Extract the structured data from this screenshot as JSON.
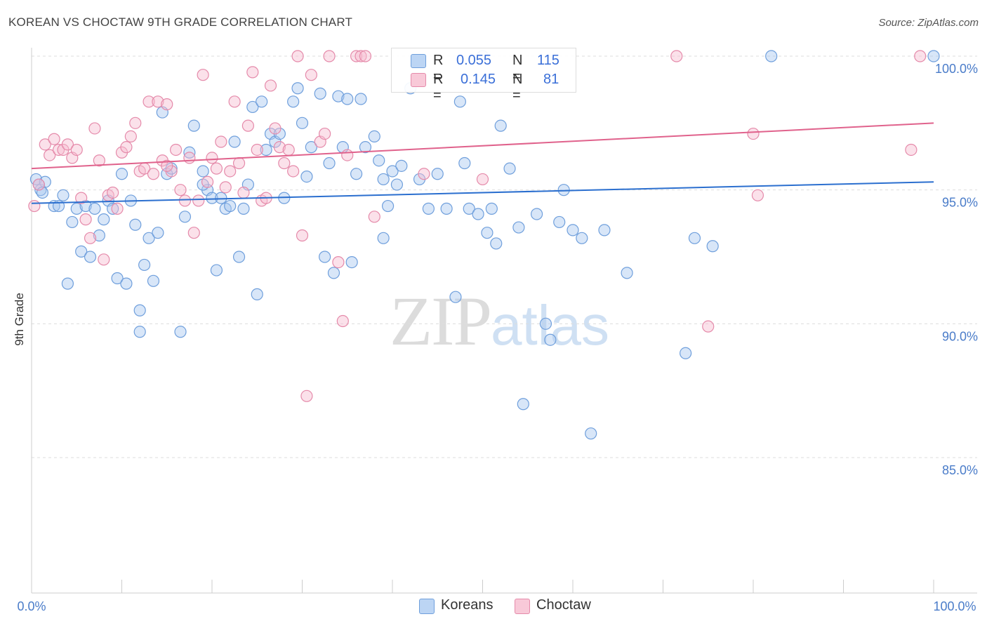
{
  "title": "KOREAN VS CHOCTAW 9TH GRADE CORRELATION CHART",
  "source": "Source: ZipAtlas.com",
  "watermark": {
    "zip": "ZIP",
    "atlas": "atlas"
  },
  "legend_top": [
    {
      "r_label": "R =",
      "r_value": "0.055",
      "n_label": "N =",
      "n_value": "115"
    },
    {
      "r_label": "R =",
      "r_value": "0.145",
      "n_label": "N =",
      "n_value": "81"
    }
  ],
  "legend_bottom": {
    "koreans": "Koreans",
    "choctaw": "Choctaw"
  },
  "chart_data": {
    "type": "scatter",
    "title": "KOREAN VS CHOCTAW 9TH GRADE CORRELATION CHART",
    "xlabel": "",
    "ylabel": "9th Grade",
    "x_tick_labels": [
      "0.0%",
      "100.0%"
    ],
    "y_tick_labels": [
      "100.0%",
      "95.0%",
      "90.0%",
      "85.0%"
    ],
    "y_ticks": [
      100,
      95,
      90,
      85
    ],
    "xlim": [
      0,
      100
    ],
    "ylim": [
      80,
      100.8
    ],
    "grid": true,
    "legend": "top-center",
    "colors": {
      "koreans_fill": "#a9c8f0",
      "koreans_stroke": "#6f9fdc",
      "koreans_line": "#2b6fcf",
      "choctaw_fill": "#f6bdd0",
      "choctaw_stroke": "#e58aaa",
      "choctaw_line": "#e0628c"
    },
    "series": [
      {
        "name": "Koreans",
        "trend": {
          "x": [
            0,
            100
          ],
          "y": [
            94.5,
            95.3
          ]
        },
        "points": [
          [
            0.5,
            95.4
          ],
          [
            1.0,
            95.0
          ],
          [
            1.5,
            95.3
          ],
          [
            2.5,
            94.4
          ],
          [
            3.5,
            94.8
          ],
          [
            4.0,
            91.5
          ],
          [
            4.5,
            93.8
          ],
          [
            5.0,
            94.3
          ],
          [
            5.5,
            92.7
          ],
          [
            6.0,
            94.4
          ],
          [
            6.5,
            92.5
          ],
          [
            7.0,
            94.3
          ],
          [
            7.5,
            93.3
          ],
          [
            8.0,
            93.9
          ],
          [
            8.5,
            94.6
          ],
          [
            9.0,
            94.3
          ],
          [
            9.5,
            91.7
          ],
          [
            10.0,
            95.6
          ],
          [
            10.5,
            91.5
          ],
          [
            11.0,
            94.6
          ],
          [
            11.5,
            93.7
          ],
          [
            12.0,
            90.5
          ],
          [
            12.0,
            89.7
          ],
          [
            12.5,
            92.2
          ],
          [
            13.0,
            93.2
          ],
          [
            13.5,
            91.6
          ],
          [
            14.0,
            93.4
          ],
          [
            14.5,
            97.9
          ],
          [
            15.0,
            95.6
          ],
          [
            15.5,
            95.8
          ],
          [
            16.5,
            89.7
          ],
          [
            17.0,
            94.0
          ],
          [
            17.5,
            96.4
          ],
          [
            18.0,
            97.4
          ],
          [
            19.0,
            95.7
          ],
          [
            19.5,
            95.0
          ],
          [
            20.0,
            94.7
          ],
          [
            20.5,
            92.0
          ],
          [
            21.0,
            94.7
          ],
          [
            21.5,
            94.3
          ],
          [
            22.0,
            94.4
          ],
          [
            22.5,
            96.8
          ],
          [
            23.0,
            92.5
          ],
          [
            23.5,
            94.3
          ],
          [
            24.0,
            95.2
          ],
          [
            24.5,
            98.1
          ],
          [
            25.0,
            91.1
          ],
          [
            25.5,
            98.3
          ],
          [
            26.0,
            96.5
          ],
          [
            26.5,
            97.1
          ],
          [
            27.0,
            96.8
          ],
          [
            28.0,
            94.7
          ],
          [
            29.0,
            98.3
          ],
          [
            29.5,
            98.8
          ],
          [
            30.0,
            97.5
          ],
          [
            30.5,
            95.5
          ],
          [
            32.0,
            98.6
          ],
          [
            32.5,
            92.5
          ],
          [
            33.0,
            96.0
          ],
          [
            33.5,
            91.9
          ],
          [
            34.0,
            98.5
          ],
          [
            34.5,
            96.6
          ],
          [
            35.0,
            98.4
          ],
          [
            35.5,
            92.3
          ],
          [
            36.0,
            95.6
          ],
          [
            36.5,
            98.4
          ],
          [
            37.0,
            96.6
          ],
          [
            38.0,
            97.0
          ],
          [
            38.5,
            96.1
          ],
          [
            39.0,
            95.4
          ],
          [
            39.5,
            94.4
          ],
          [
            40.0,
            95.7
          ],
          [
            40.5,
            95.2
          ],
          [
            41.0,
            95.9
          ],
          [
            42.0,
            98.8
          ],
          [
            43.0,
            95.4
          ],
          [
            44.0,
            94.3
          ],
          [
            46.0,
            94.3
          ],
          [
            47.0,
            91.0
          ],
          [
            47.5,
            98.3
          ],
          [
            48.0,
            96.0
          ],
          [
            48.5,
            94.3
          ],
          [
            49.5,
            94.1
          ],
          [
            50.0,
            100.0
          ],
          [
            50.5,
            93.4
          ],
          [
            51.0,
            94.3
          ],
          [
            51.5,
            93.0
          ],
          [
            52.0,
            97.4
          ],
          [
            53.0,
            95.8
          ],
          [
            54.0,
            93.6
          ],
          [
            54.5,
            87.0
          ],
          [
            56.0,
            94.1
          ],
          [
            57.0,
            90.0
          ],
          [
            57.5,
            89.4
          ],
          [
            58.5,
            93.8
          ],
          [
            59.0,
            95.0
          ],
          [
            60.0,
            93.5
          ],
          [
            61.0,
            93.2
          ],
          [
            62.0,
            85.9
          ],
          [
            63.5,
            93.5
          ],
          [
            66.0,
            91.9
          ],
          [
            72.5,
            88.9
          ],
          [
            73.5,
            93.2
          ],
          [
            75.5,
            92.9
          ],
          [
            82.0,
            100.0
          ],
          [
            100.0,
            100.0
          ],
          [
            0.8,
            95.2
          ],
          [
            1.2,
            94.9
          ],
          [
            3.0,
            94.4
          ],
          [
            19.0,
            95.2
          ],
          [
            27.5,
            97.1
          ],
          [
            31.0,
            96.6
          ],
          [
            39.0,
            93.2
          ],
          [
            45.0,
            95.6
          ]
        ]
      },
      {
        "name": "Choctaw",
        "trend": {
          "x": [
            0,
            100
          ],
          "y": [
            95.8,
            97.5
          ]
        },
        "points": [
          [
            0.3,
            94.4
          ],
          [
            0.8,
            95.2
          ],
          [
            1.5,
            96.7
          ],
          [
            2.0,
            96.3
          ],
          [
            2.5,
            96.9
          ],
          [
            3.0,
            96.5
          ],
          [
            3.5,
            96.5
          ],
          [
            4.0,
            96.7
          ],
          [
            4.5,
            96.2
          ],
          [
            5.0,
            96.5
          ],
          [
            5.5,
            94.7
          ],
          [
            6.0,
            93.9
          ],
          [
            6.5,
            93.2
          ],
          [
            7.0,
            97.3
          ],
          [
            7.5,
            96.1
          ],
          [
            8.0,
            92.4
          ],
          [
            8.5,
            94.8
          ],
          [
            9.0,
            94.9
          ],
          [
            9.5,
            94.3
          ],
          [
            10.0,
            96.4
          ],
          [
            10.5,
            96.6
          ],
          [
            11.0,
            97.0
          ],
          [
            11.5,
            97.5
          ],
          [
            12.0,
            95.7
          ],
          [
            12.5,
            95.8
          ],
          [
            13.0,
            98.3
          ],
          [
            13.5,
            95.6
          ],
          [
            14.0,
            98.3
          ],
          [
            14.5,
            96.1
          ],
          [
            15.0,
            98.2
          ],
          [
            15.5,
            95.7
          ],
          [
            16.0,
            96.5
          ],
          [
            16.5,
            95.0
          ],
          [
            17.0,
            94.6
          ],
          [
            17.5,
            96.2
          ],
          [
            18.0,
            93.4
          ],
          [
            18.5,
            94.6
          ],
          [
            19.0,
            99.3
          ],
          [
            19.5,
            95.3
          ],
          [
            20.0,
            96.2
          ],
          [
            20.5,
            95.8
          ],
          [
            21.0,
            96.8
          ],
          [
            21.5,
            95.1
          ],
          [
            22.0,
            95.7
          ],
          [
            22.5,
            98.3
          ],
          [
            23.0,
            96.0
          ],
          [
            23.5,
            94.9
          ],
          [
            24.0,
            97.4
          ],
          [
            24.5,
            99.4
          ],
          [
            25.0,
            96.5
          ],
          [
            25.5,
            94.6
          ],
          [
            26.0,
            94.7
          ],
          [
            26.5,
            98.9
          ],
          [
            27.0,
            97.3
          ],
          [
            27.5,
            96.6
          ],
          [
            28.0,
            96.0
          ],
          [
            28.5,
            96.5
          ],
          [
            29.0,
            95.7
          ],
          [
            29.5,
            100.0
          ],
          [
            30.0,
            93.3
          ],
          [
            30.5,
            87.3
          ],
          [
            31.0,
            99.3
          ],
          [
            32.0,
            96.8
          ],
          [
            32.5,
            97.1
          ],
          [
            33.0,
            100.0
          ],
          [
            34.0,
            92.3
          ],
          [
            34.5,
            90.1
          ],
          [
            35.0,
            96.3
          ],
          [
            36.0,
            100.0
          ],
          [
            36.5,
            100.0
          ],
          [
            37.0,
            100.0
          ],
          [
            38.0,
            94.0
          ],
          [
            43.5,
            95.6
          ],
          [
            50.0,
            95.4
          ],
          [
            71.5,
            100.0
          ],
          [
            75.0,
            89.9
          ],
          [
            80.0,
            97.1
          ],
          [
            80.5,
            94.8
          ],
          [
            97.5,
            96.5
          ],
          [
            98.5,
            100.0
          ],
          [
            15.0,
            95.9
          ]
        ]
      }
    ]
  }
}
